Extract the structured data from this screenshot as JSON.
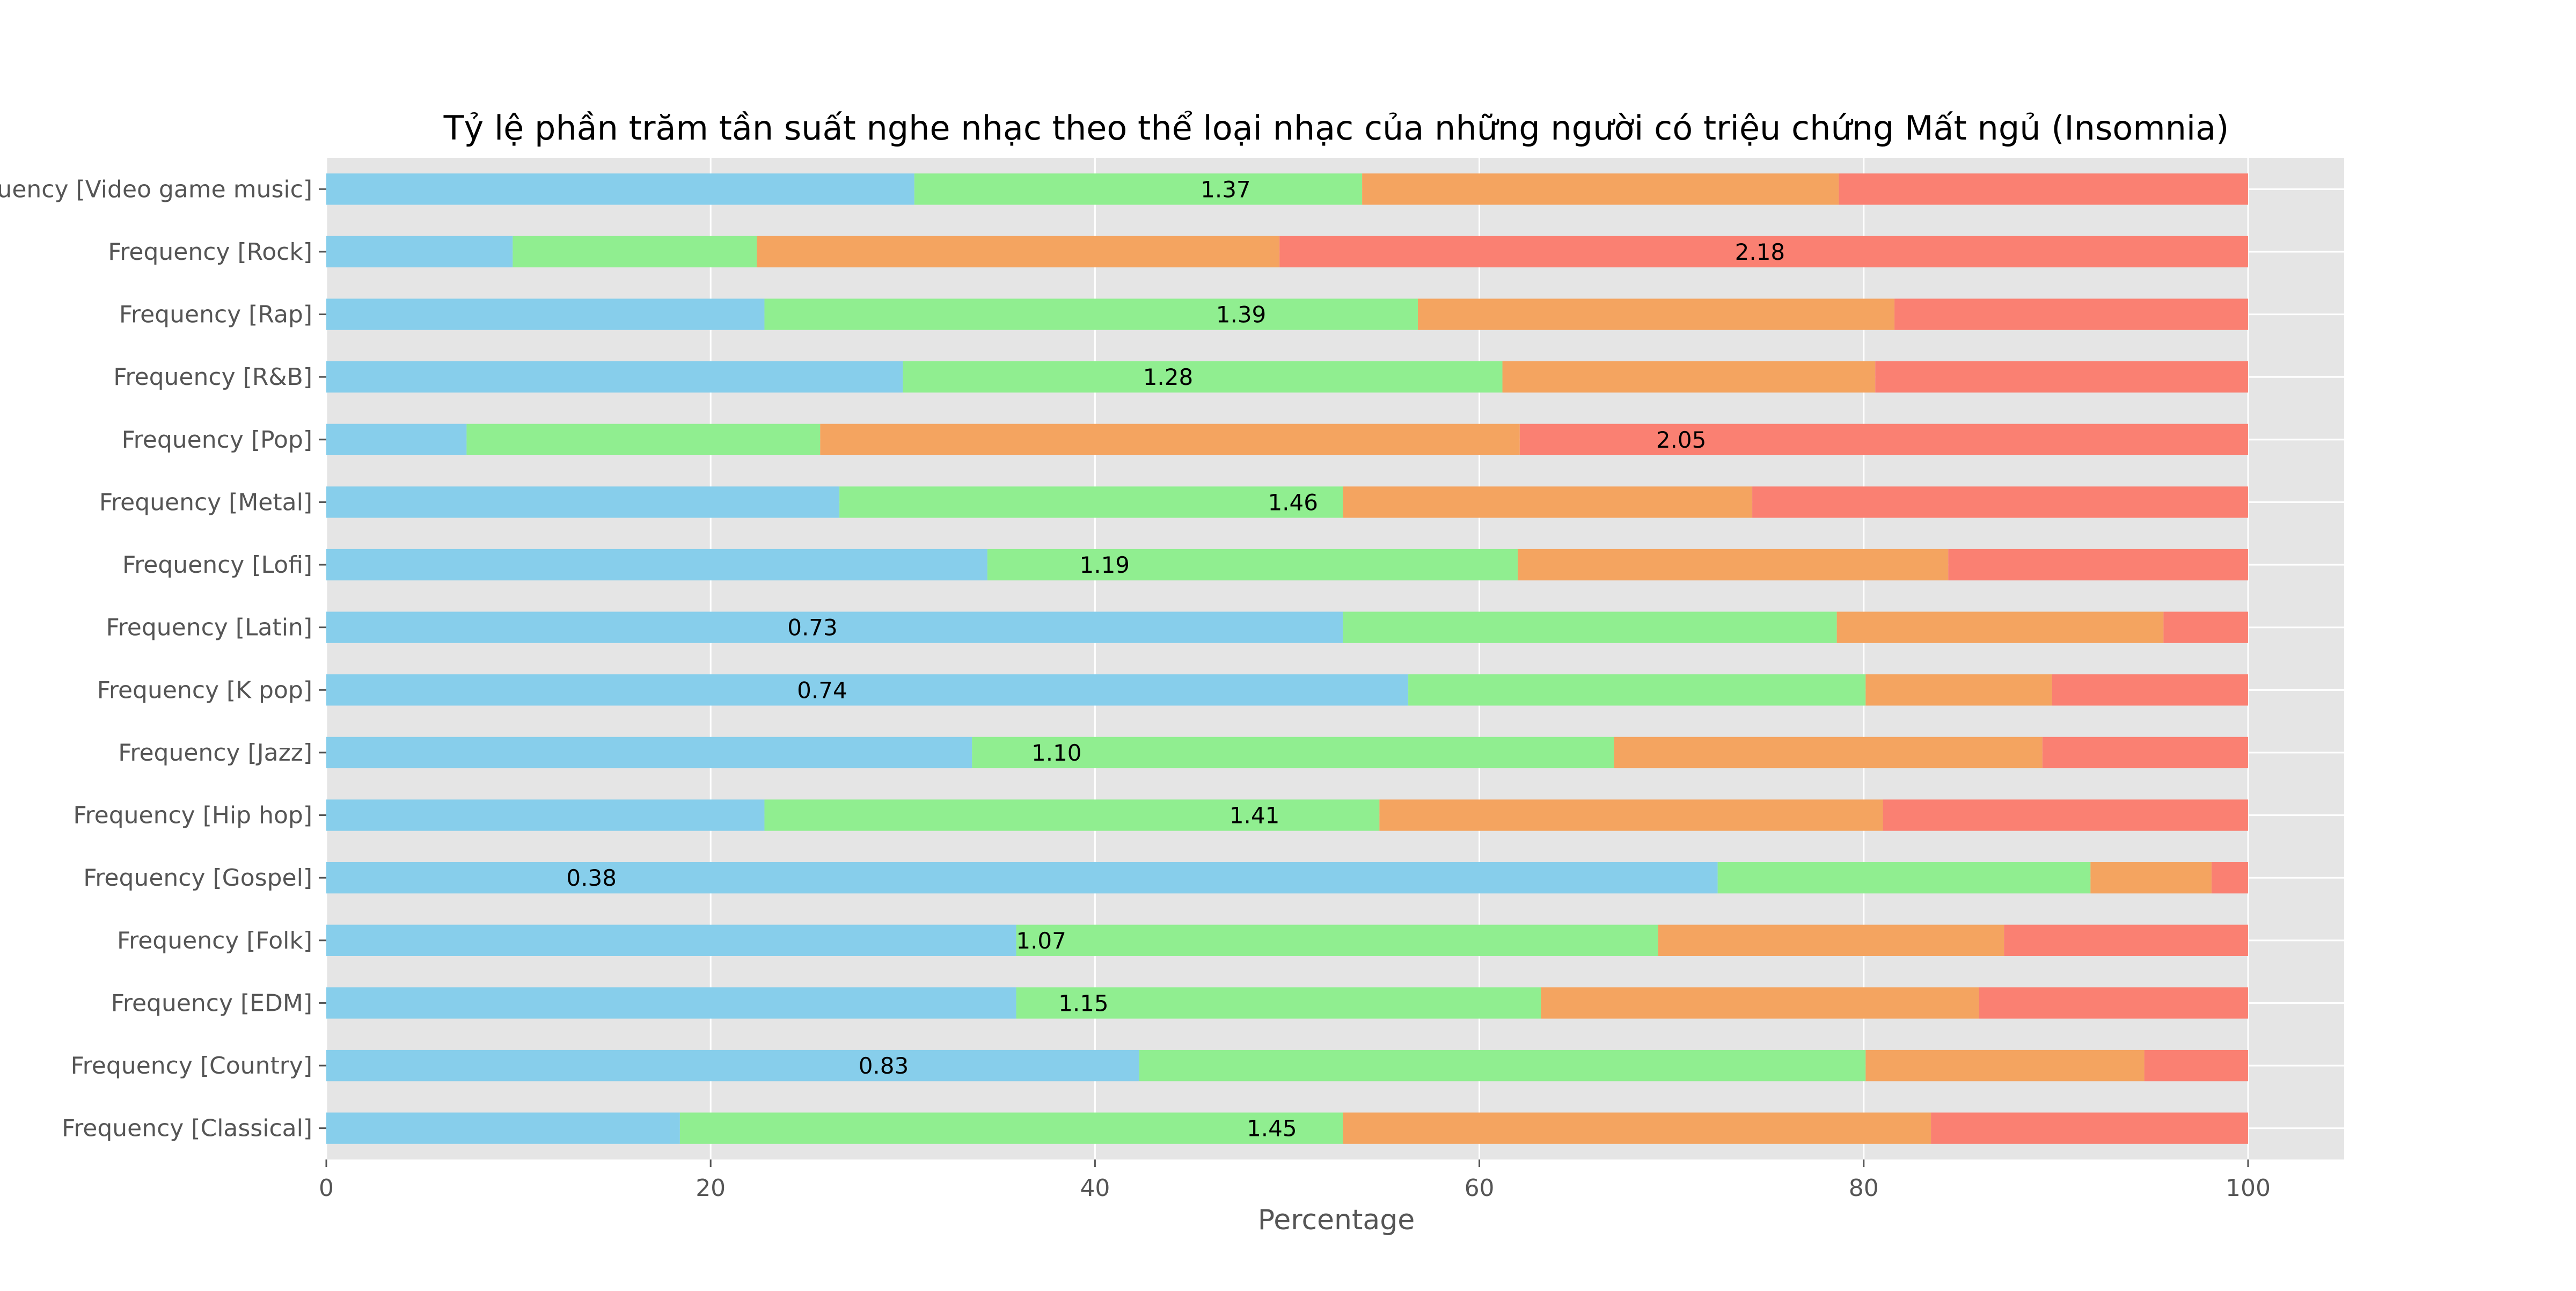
{
  "chart_data": {
    "type": "bar",
    "orientation": "horizontal",
    "stacked": true,
    "title": "Tỷ lệ phần trăm tần suất nghe nhạc theo thể loại nhạc của những người có triệu chứng Mất ngủ (Insomnia)",
    "xlabel": "Percentage",
    "ylabel": "",
    "xlim": [
      0,
      105
    ],
    "xticks": [
      0,
      20,
      40,
      60,
      80,
      100
    ],
    "grid": true,
    "legend": "none",
    "categories": [
      "Frequency [Classical]",
      "Frequency [Country]",
      "Frequency [EDM]",
      "Frequency [Folk]",
      "Frequency [Gospel]",
      "Frequency [Hip hop]",
      "Frequency [Jazz]",
      "Frequency [K pop]",
      "Frequency [Latin]",
      "Frequency [Lofi]",
      "Frequency [Metal]",
      "Frequency [Pop]",
      "Frequency [R&B]",
      "Frequency [Rap]",
      "Frequency [Rock]",
      "Frequency [Video game music]"
    ],
    "series": [
      {
        "color": "#87CEEB",
        "values": [
          18.4,
          42.3,
          35.9,
          35.9,
          72.4,
          22.8,
          33.6,
          56.3,
          52.9,
          34.4,
          26.7,
          7.3,
          30.0,
          22.8,
          9.7,
          30.6
        ]
      },
      {
        "color": "#90EE90",
        "values": [
          34.5,
          37.8,
          27.3,
          33.4,
          19.4,
          32.0,
          33.4,
          23.8,
          25.7,
          27.6,
          26.2,
          18.4,
          31.2,
          34.0,
          12.7,
          23.3
        ]
      },
      {
        "color": "#F4A460",
        "values": [
          30.6,
          14.5,
          22.8,
          18.0,
          6.3,
          26.2,
          22.3,
          9.7,
          17.0,
          22.4,
          21.3,
          36.4,
          19.4,
          24.8,
          27.2,
          24.8
        ]
      },
      {
        "color": "#FA8072",
        "values": [
          16.5,
          5.4,
          14.0,
          12.7,
          1.9,
          19.0,
          10.7,
          10.2,
          4.4,
          15.6,
          25.8,
          37.9,
          19.4,
          18.4,
          50.4,
          21.3
        ]
      }
    ],
    "annotations": [
      "1.45",
      "0.83",
      "1.15",
      "1.07",
      "0.38",
      "1.41",
      "1.10",
      "0.74",
      "0.73",
      "1.19",
      "1.46",
      "2.05",
      "1.28",
      "1.39",
      "2.18",
      "1.37"
    ],
    "annotation_x": [
      49.2,
      29.0,
      39.4,
      37.2,
      13.8,
      48.3,
      38.0,
      25.8,
      25.3,
      40.5,
      50.3,
      70.5,
      43.8,
      47.6,
      74.6,
      46.8
    ]
  }
}
